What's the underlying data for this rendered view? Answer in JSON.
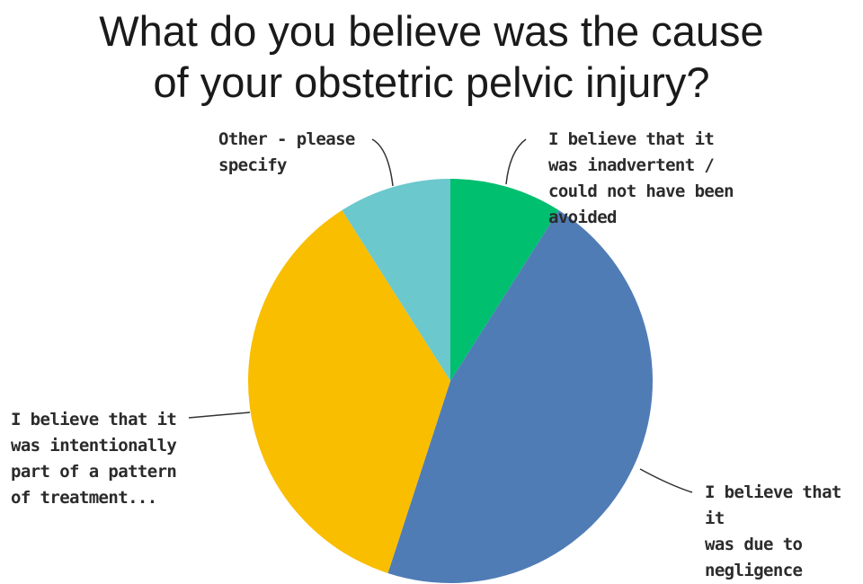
{
  "chart_data": {
    "type": "pie",
    "title_lines": [
      "What do you believe was the cause",
      "of your obstetric pelvic injury?"
    ],
    "slices": [
      {
        "label": "I believe that it\nwas inadvertent /\ncould not have been\navoided",
        "value": 9,
        "color": "#00bf6f"
      },
      {
        "label": "I believe that it\nwas due to\nnegligence",
        "value": 46,
        "color": "#507cb6"
      },
      {
        "label": "I believe that it\nwas intentionally\npart of a pattern\nof treatment...",
        "value": 36,
        "color": "#f9be00"
      },
      {
        "label": "Other - please\nspecify",
        "value": 9,
        "color": "#6bc8cd"
      }
    ],
    "start_angle": "12 o'clock",
    "direction": "clockwise",
    "legend": "none"
  }
}
